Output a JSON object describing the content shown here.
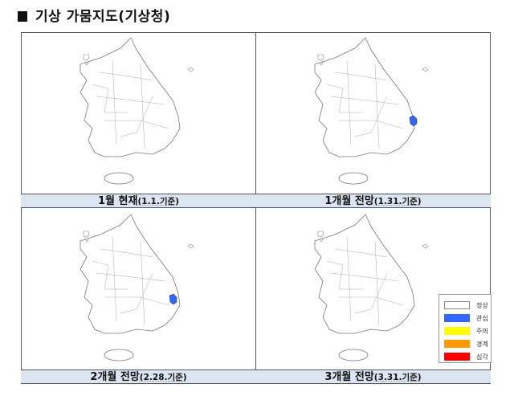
{
  "title": "기상 가뭄지도(기상청)",
  "panels": [
    {
      "caption_main": "1월 현재",
      "caption_sub": "(1.1.기준)"
    },
    {
      "caption_main": "1개월 전망",
      "caption_sub": "(1.31.기준)"
    },
    {
      "caption_main": "2개월 전망",
      "caption_sub": "(2.28.기준)"
    },
    {
      "caption_main": "3개월 전망",
      "caption_sub": "(3.31.기준)"
    }
  ],
  "legend": [
    {
      "label": "정상",
      "color": "#ffffff"
    },
    {
      "label": "관심",
      "color": "#3366ff"
    },
    {
      "label": "주의",
      "color": "#ffff00"
    },
    {
      "label": "경계",
      "color": "#ff9900"
    },
    {
      "label": "심각",
      "color": "#ff0000"
    }
  ]
}
